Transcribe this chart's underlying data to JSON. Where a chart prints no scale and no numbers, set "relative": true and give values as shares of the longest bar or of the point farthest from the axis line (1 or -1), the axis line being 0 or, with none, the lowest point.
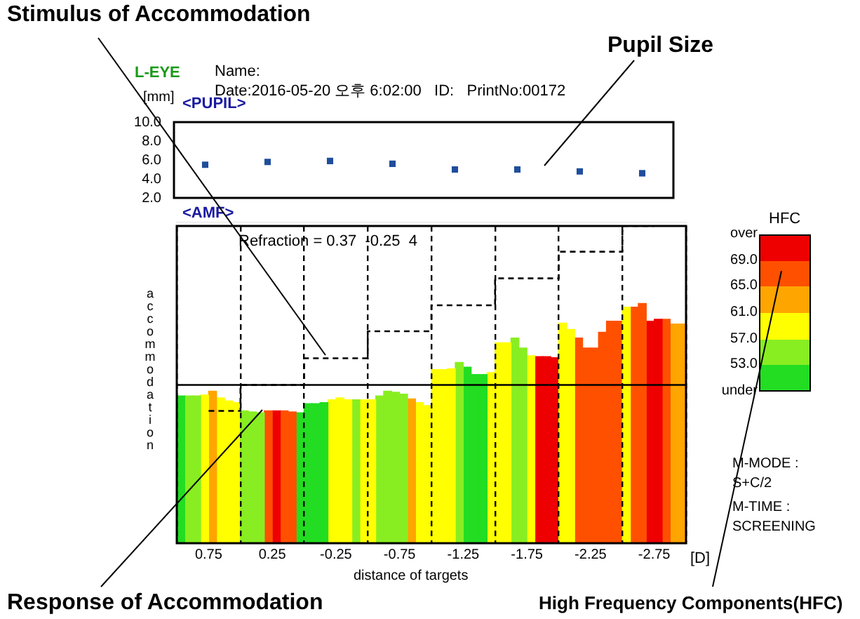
{
  "chart_data": [
    {
      "type": "scatter",
      "title": "<PUPIL>",
      "ylabel": "[mm]",
      "categories": [
        "0.75",
        "0.25",
        "-0.25",
        "-0.75",
        "-1.25",
        "-1.75",
        "-2.25",
        "-2.75"
      ],
      "values": [
        5.5,
        5.8,
        5.9,
        5.6,
        5.0,
        5.0,
        4.8,
        4.6
      ],
      "color": "#1f4e9c",
      "marker": "square",
      "tick_labels": "y",
      "ylim": [
        2,
        10
      ],
      "yticks": [
        {
          "value": 2,
          "label": "2.0"
        },
        {
          "value": 4,
          "label": "4.0"
        },
        {
          "value": 6,
          "label": "6.0"
        },
        {
          "value": 8,
          "label": "8.0"
        },
        {
          "value": 10,
          "label": "10.0"
        }
      ],
      "annotations": [
        "Stimulus of Accommodation",
        "Pupil Size",
        "L-EYE",
        "Name:",
        "Date:2016-05-20 오후 6:02:00   ID:   PrintNo:00172"
      ]
    },
    {
      "type": "bar",
      "title": "<AMF>",
      "xlabel": "distance of targets",
      "ylabel": "accommodation",
      "relative": true,
      "grid": "x",
      "categories": [
        "0.75",
        "0.25",
        "-0.25",
        "-0.75",
        "-1.25",
        "-1.75",
        "-2.25",
        "-2.75"
      ],
      "series": [
        {
          "values": [
            0.464,
            0.417,
            0.44,
            0.452,
            0.547,
            0.632,
            0.694,
            0.744
          ],
          "colors": [
            "#22dd22",
            "#88ee22",
            "#22dd22",
            "#ffff00",
            "#ffff00",
            "#ffff00",
            "#ffff00",
            "#ffff00"
          ]
        },
        {
          "values": [
            0.464,
            0.414,
            0.44,
            0.464,
            0.547,
            0.632,
            0.674,
            0.744
          ],
          "colors": [
            "#88ee22",
            "#88ee22",
            "#22dd22",
            "#88ee22",
            "#ffff00",
            "#ffff00",
            "#ffff00",
            "#ff5000"
          ]
        },
        {
          "values": [
            0.464,
            0.411,
            0.443,
            0.479,
            0.55,
            0.647,
            0.647,
            0.756
          ],
          "colors": [
            "#88ee22",
            "#88ee22",
            "#22dd22",
            "#88ee22",
            "#ffff00",
            "#88ee22",
            "#ff5000",
            "#ff5000"
          ]
        },
        {
          "values": [
            0.467,
            0.417,
            0.452,
            0.476,
            0.57,
            0.615,
            0.615,
            0.7
          ],
          "colors": [
            "#ffff00",
            "#ff5000",
            "#ffff00",
            "#88ee22",
            "#88ee22",
            "#88ee22",
            "#ff5000",
            "#ee0000"
          ]
        },
        {
          "values": [
            0.479,
            0.417,
            0.458,
            0.47,
            0.555,
            0.591,
            0.615,
            0.706
          ],
          "colors": [
            "#ffa500",
            "#ee0000",
            "#ffff00",
            "#88ee22",
            "#22dd22",
            "#ffff00",
            "#ff5000",
            "#ee0000"
          ]
        },
        {
          "values": [
            0.458,
            0.417,
            0.452,
            0.455,
            0.532,
            0.588,
            0.665,
            0.706
          ],
          "colors": [
            "#ffff00",
            "#ff5000",
            "#ffff00",
            "#ffa500",
            "#22dd22",
            "#ee0000",
            "#ff5000",
            "#ff5000"
          ]
        },
        {
          "values": [
            0.449,
            0.414,
            0.452,
            0.443,
            0.532,
            0.588,
            0.7,
            0.691
          ],
          "colors": [
            "#ffff00",
            "#ff5000",
            "#88ee22",
            "#ffff00",
            "#22dd22",
            "#ee0000",
            "#ff5000",
            "#ffa500"
          ]
        },
        {
          "values": [
            0.443,
            0.411,
            0.452,
            0.434,
            0.538,
            0.585,
            0.7,
            0.691
          ],
          "colors": [
            "#ffff00",
            "#22dd22",
            "#ffff00",
            "#ffff00",
            "#ffff00",
            "#ee0000",
            "#ff5000",
            "#ffa500"
          ]
        },
        {
          "type": "step",
          "color": "#000000",
          "line_style": "dashed",
          "values": [
            0.417,
            0.499,
            0.583,
            0.668,
            0.75,
            0.835,
            0.919,
            1
          ]
        }
      ],
      "ref_lines": [
        {
          "axis": "y",
          "value": 0.499,
          "color": "#000000"
        }
      ],
      "clabel": "HFC",
      "clim": [
        49,
        73
      ],
      "cticks": [
        {
          "value": 49,
          "label": "under"
        },
        {
          "value": 53,
          "label": "53.0"
        },
        {
          "value": 57,
          "label": "57.0"
        },
        {
          "value": 61,
          "label": "61.0"
        },
        {
          "value": 65,
          "label": "65.0"
        },
        {
          "value": 69,
          "label": "69.0"
        },
        {
          "value": 73,
          "label": "over"
        }
      ],
      "annotations": [
        "Refraction = 0.37  -0.25  4",
        "[D]",
        "M-MODE :",
        "S+C/2",
        "M-TIME :",
        "SCREENING",
        "Response of Accommodation",
        "High Frequency Components(HFC)"
      ]
    }
  ]
}
